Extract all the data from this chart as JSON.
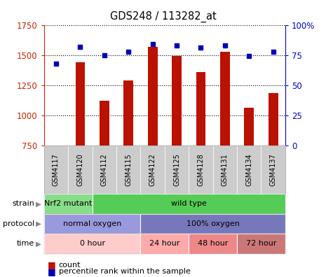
{
  "title": "GDS248 / 113282_at",
  "samples": [
    "GSM4117",
    "GSM4120",
    "GSM4112",
    "GSM4115",
    "GSM4122",
    "GSM4125",
    "GSM4128",
    "GSM4131",
    "GSM4134",
    "GSM4137"
  ],
  "counts": [
    750,
    1440,
    1120,
    1290,
    1570,
    1490,
    1360,
    1530,
    1065,
    1185
  ],
  "percentiles": [
    68,
    82,
    75,
    78,
    84,
    83,
    81,
    83,
    74,
    78
  ],
  "ylim_left": [
    750,
    1750
  ],
  "ylim_right": [
    0,
    100
  ],
  "yticks_left": [
    750,
    1000,
    1250,
    1500,
    1750
  ],
  "yticks_right": [
    0,
    25,
    50,
    75,
    100
  ],
  "strain_groups": [
    {
      "label": "Nrf2 mutant",
      "start": 0,
      "end": 2,
      "color": "#88DD88"
    },
    {
      "label": "wild type",
      "start": 2,
      "end": 10,
      "color": "#55CC55"
    }
  ],
  "protocol_groups": [
    {
      "label": "normal oxygen",
      "start": 0,
      "end": 4,
      "color": "#9999DD"
    },
    {
      "label": "100% oxygen",
      "start": 4,
      "end": 10,
      "color": "#7777BB"
    }
  ],
  "time_groups": [
    {
      "label": "0 hour",
      "start": 0,
      "end": 4,
      "color": "#FFCCCC"
    },
    {
      "label": "24 hour",
      "start": 4,
      "end": 6,
      "color": "#FFAAAA"
    },
    {
      "label": "48 hour",
      "start": 6,
      "end": 8,
      "color": "#EE8888"
    },
    {
      "label": "72 hour",
      "start": 8,
      "end": 10,
      "color": "#CC7777"
    }
  ],
  "bar_color": "#BB1100",
  "dot_color": "#0000BB",
  "grid_color": "#000000",
  "annotation_labels": [
    "strain",
    "protocol",
    "time"
  ],
  "legend_count_label": "count",
  "legend_percentile_label": "percentile rank within the sample",
  "left_axis_color": "#CC2200",
  "right_axis_color": "#0000CC",
  "sample_box_color": "#CCCCCC",
  "arrow_color": "#888888"
}
